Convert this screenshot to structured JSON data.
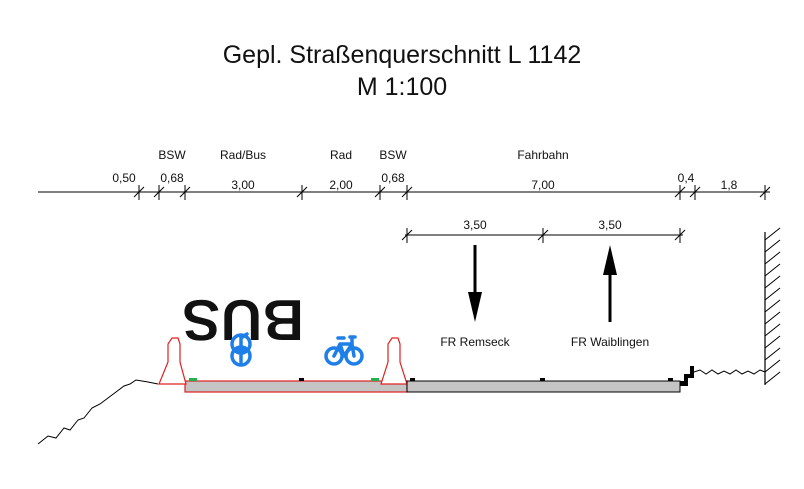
{
  "title": {
    "line1": "Gepl. Straßenquerschnitt L 1142",
    "line2": "M 1:100"
  },
  "section_labels": [
    "BSW",
    "Rad/Bus",
    "Rad",
    "BSW",
    "Fahrbahn"
  ],
  "dimensions": [
    "0,50",
    "0,68",
    "3,00",
    "2,00",
    "0,68",
    "7,00",
    "0,4",
    "1,8"
  ],
  "lane_dimensions": [
    "3,50",
    "3,50"
  ],
  "bus_marking": "BUS",
  "directions": [
    "FR Remseck",
    "FR Waiblingen"
  ],
  "colors": {
    "bike_blue": "#1e7fe8",
    "curb_red": "#e02020",
    "road_grey": "#c4c4c4",
    "green_marker": "#22b14c"
  },
  "icons": [
    "bicycle-icon",
    "bicycle-icon",
    "arrow-down-icon",
    "arrow-up-icon"
  ]
}
